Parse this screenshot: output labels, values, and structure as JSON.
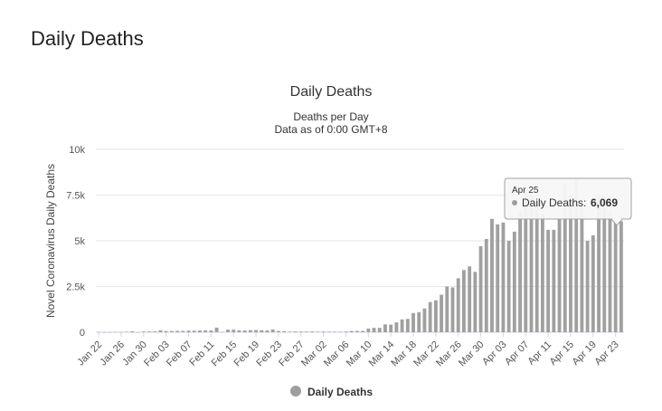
{
  "page": {
    "heading": "Daily Deaths"
  },
  "chart_data": {
    "type": "bar",
    "title": "Daily Deaths",
    "subtitle": [
      "Deaths per Day",
      "Data as of 0:00 GMT+8"
    ],
    "ylabel": "Novel Coronavirus Daily Deaths",
    "ylim": [
      0,
      10000
    ],
    "yticks": [
      {
        "value": 0,
        "label": "0"
      },
      {
        "value": 2500,
        "label": "2.5k"
      },
      {
        "value": 5000,
        "label": "5k"
      },
      {
        "value": 7500,
        "label": "7.5k"
      },
      {
        "value": 10000,
        "label": "10k"
      }
    ],
    "xtick_labels": [
      "Jan 22",
      "Jan 26",
      "Jan 30",
      "Feb 03",
      "Feb 07",
      "Feb 11",
      "Feb 15",
      "Feb 19",
      "Feb 23",
      "Feb 27",
      "Mar 02",
      "Mar 06",
      "Mar 10",
      "Mar 14",
      "Mar 18",
      "Mar 22",
      "Mar 26",
      "Mar 30",
      "Apr 03",
      "Apr 07",
      "Apr 11",
      "Apr 15",
      "Apr 19",
      "Apr 23"
    ],
    "start_date": "Jan 22",
    "series": [
      {
        "name": "Daily Deaths",
        "color": "#a0a0a0",
        "values": [
          17,
          1,
          8,
          16,
          14,
          26,
          49,
          2,
          38,
          42,
          46,
          103,
          64,
          66,
          73,
          73,
          86,
          89,
          97,
          108,
          97,
          254,
          13,
          143,
          142,
          106,
          98,
          115,
          118,
          109,
          97,
          150,
          71,
          52,
          29,
          44,
          37,
          35,
          42,
          31,
          38,
          31,
          30,
          28,
          37,
          66,
          72,
          71,
          200,
          240,
          240,
          430,
          420,
          540,
          700,
          730,
          1050,
          1100,
          1300,
          1650,
          1750,
          2050,
          2500,
          2450,
          2950,
          3400,
          3600,
          3300,
          4700,
          5100,
          6200,
          5900,
          6000,
          5000,
          5500,
          6500,
          7700,
          7500,
          7000,
          6500,
          5600,
          5600,
          6200,
          8100,
          7500,
          8400,
          6900,
          5000,
          5300,
          7500,
          7200,
          6600,
          6300,
          6069
        ]
      }
    ],
    "legend": {
      "placement": "bottom",
      "label": "Daily Deaths"
    },
    "tooltip": {
      "date": "Apr 25",
      "series_label": "Daily Deaths:",
      "value": "6,069"
    },
    "grid": true
  }
}
